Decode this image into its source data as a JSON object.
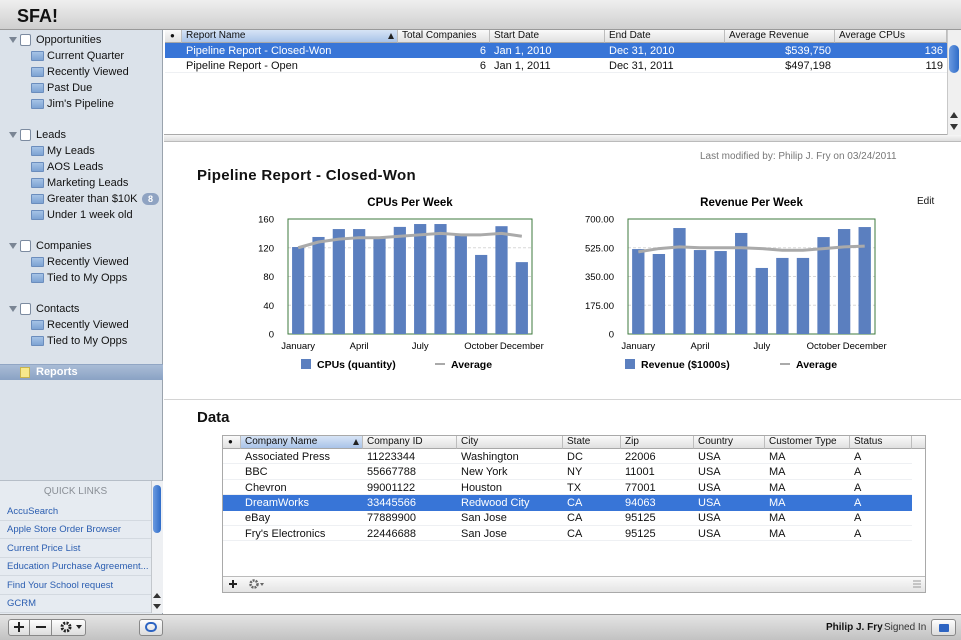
{
  "app_title": "SFA!",
  "sidebar": {
    "groups": [
      {
        "label": "Opportunities",
        "items": [
          {
            "label": "Current Quarter"
          },
          {
            "label": "Recently Viewed"
          },
          {
            "label": "Past Due"
          },
          {
            "label": "Jim's Pipeline"
          }
        ]
      },
      {
        "label": "Leads",
        "items": [
          {
            "label": "My Leads"
          },
          {
            "label": "AOS Leads"
          },
          {
            "label": "Marketing Leads"
          },
          {
            "label": "Greater than $10K",
            "badge": 8
          },
          {
            "label": "Under 1 week old"
          }
        ]
      },
      {
        "label": "Companies",
        "items": [
          {
            "label": "Recently Viewed"
          },
          {
            "label": "Tied to My Opps"
          }
        ]
      },
      {
        "label": "Contacts",
        "items": [
          {
            "label": "Recently Viewed"
          },
          {
            "label": "Tied to My Opps"
          }
        ]
      }
    ],
    "selected": "Reports"
  },
  "quick_links": {
    "title": "QUICK LINKS",
    "items": [
      "AccuSearch",
      "Apple Store Order Browser",
      "Current Price List",
      "Education Purchase Agreement...",
      "Find Your School request",
      "GCRM"
    ]
  },
  "reports_table": {
    "columns": [
      "●",
      "Report Name",
      "Total Companies",
      "Start Date",
      "End Date",
      "Average Revenue",
      "Average CPUs"
    ],
    "rows": [
      [
        "",
        "Pipeline Report - Closed-Won",
        "6",
        "Jan 1, 2010",
        "Dec 31, 2010",
        "$539,750",
        "136"
      ],
      [
        "",
        "Pipeline Report - Open",
        "6",
        "Jan 1, 2011",
        "Dec 31, 2011",
        "$497,198",
        "119"
      ]
    ],
    "selected_row": 0
  },
  "report": {
    "last_modified": "Last modified by: Philip J. Fry  on 03/24/2011",
    "edit": "Edit",
    "title": "Pipeline Report - Closed-Won"
  },
  "charts": [
    {
      "type": "bar",
      "title": "CPUs Per Week",
      "categories": [
        "January",
        null,
        null,
        "April",
        null,
        null,
        "July",
        null,
        null,
        "October",
        null,
        "December"
      ],
      "series": [
        {
          "name": "CPUs (quantity)",
          "color": "#5b7fbf",
          "values": [
            121,
            135,
            146,
            146,
            133,
            149,
            153,
            153,
            139,
            110,
            150,
            100
          ]
        },
        {
          "name": "Average",
          "type": "line",
          "color": "#aaaaaa",
          "values": [
            120,
            128,
            132,
            134,
            134,
            136,
            138,
            140,
            138,
            138,
            140,
            136
          ]
        }
      ],
      "ylim": [
        0,
        160
      ],
      "yticks": [
        0,
        40,
        80,
        120,
        160
      ],
      "grid": true
    },
    {
      "type": "bar",
      "title": "Revenue Per Week",
      "categories": [
        "January",
        null,
        null,
        "April",
        null,
        null,
        "July",
        null,
        null,
        "October",
        null,
        "December"
      ],
      "series": [
        {
          "name": "Revenue ($1000s)",
          "color": "#5b7fbf",
          "values": [
            517,
            487,
            645,
            511,
            505,
            615,
            402,
            463,
            463,
            590,
            639,
            651
          ]
        },
        {
          "name": "Average",
          "type": "line",
          "color": "#aaaaaa",
          "values": [
            500,
            520,
            530,
            525,
            525,
            525,
            520,
            510,
            510,
            520,
            530,
            535
          ]
        }
      ],
      "ylim": [
        0,
        700
      ],
      "yticks": [
        0,
        {
          "value": 175,
          "label": "175.00"
        },
        {
          "value": 350,
          "label": "350.00"
        },
        {
          "value": 525,
          "label": "525.00"
        },
        {
          "value": 700,
          "label": "700.00"
        }
      ],
      "grid": true
    }
  ],
  "data_section": {
    "title": "Data",
    "table": {
      "columns": [
        "●",
        "Company Name",
        "Company ID",
        "City",
        "State",
        "Zip",
        "Country",
        "Customer Type",
        "Status"
      ],
      "rows": [
        [
          "",
          "Associated Press",
          "11223344",
          "Washington",
          "DC",
          "22006",
          "USA",
          "MA",
          "A"
        ],
        [
          "",
          "BBC",
          "55667788",
          "New York",
          "NY",
          "11001",
          "USA",
          "MA",
          "A"
        ],
        [
          "",
          "Chevron",
          "99001122",
          "Houston",
          "TX",
          "77001",
          "USA",
          "MA",
          "A"
        ],
        [
          "",
          "DreamWorks",
          "33445566",
          "Redwood City",
          "CA",
          "94063",
          "USA",
          "MA",
          "A"
        ],
        [
          "",
          "eBay",
          "77889900",
          "San Jose",
          "CA",
          "95125",
          "USA",
          "MA",
          "A"
        ],
        [
          "",
          "Fry's Electronics",
          "22446688",
          "San Jose",
          "CA",
          "95125",
          "USA",
          "MA",
          "A"
        ]
      ],
      "selected_row": 3
    }
  },
  "footer": {
    "user": "Philip J. Fry",
    "status": "Signed In"
  }
}
